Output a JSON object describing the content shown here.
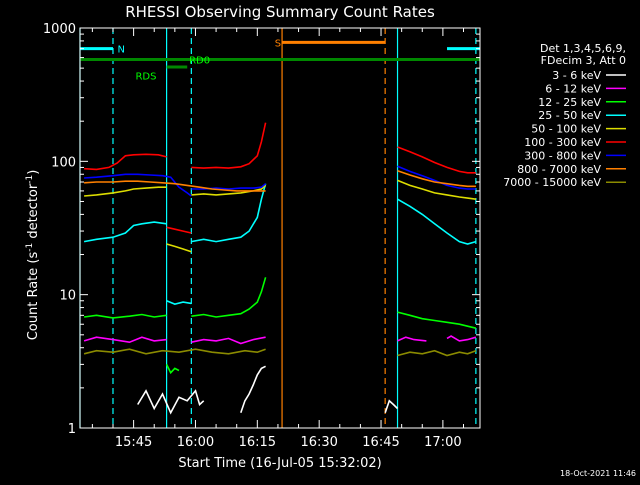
{
  "chart_data": {
    "type": "line",
    "title": "RHESSI Observing Summary Count Rates",
    "xlabel": "Start Time (16-Jul-05 15:32:02)",
    "ylabel_main": "Count Rate (s",
    "ylabel_sup1": "-1",
    "ylabel_mid": " detector",
    "ylabel_sup2": "-1",
    "ylabel_end": ")",
    "date_stamp": "18-Oct-2021 11:46",
    "y_scale": "log",
    "ylim": [
      1,
      1000
    ],
    "xlim": [
      "15:32",
      "17:09"
    ],
    "x_ticks": [
      "15:45",
      "16:00",
      "16:15",
      "16:30",
      "16:45",
      "17:00"
    ],
    "y_ticks": [
      "1",
      "10",
      "100",
      "1000"
    ],
    "legend_header": [
      "Det 1,3,4,5,6,9,",
      "FDecim 3, Att 0"
    ],
    "series": [
      {
        "name": "3 - 6 keV",
        "color": "#ffffff",
        "segments": [
          {
            "x": [
              "16:46",
              "16:47",
              "16:48",
              "16:49"
            ],
            "y": [
              1.3,
              1.6,
              1.5,
              1.4
            ]
          },
          {
            "x": [
              "15:46",
              "15:48",
              "15:50",
              "15:52",
              "15:54",
              "15:56",
              "15:58",
              "16:00",
              "16:01",
              "16:02"
            ],
            "y": [
              1.5,
              1.9,
              1.4,
              1.8,
              1.3,
              1.7,
              1.6,
              1.9,
              1.5,
              1.6
            ]
          },
          {
            "x": [
              "16:11",
              "16:12",
              "16:13",
              "16:14",
              "16:15",
              "16:16",
              "16:17"
            ],
            "y": [
              1.3,
              1.6,
              1.8,
              2.1,
              2.5,
              2.8,
              2.9
            ]
          }
        ]
      },
      {
        "name": "6 - 12 keV",
        "color": "#ff00ff",
        "segments": [
          {
            "x": [
              "15:33",
              "15:36",
              "15:40",
              "15:44",
              "15:47",
              "15:50",
              "15:53"
            ],
            "y": [
              4.5,
              4.8,
              4.6,
              4.4,
              4.8,
              4.5,
              4.6
            ]
          },
          {
            "x": [
              "15:59",
              "16:02",
              "16:05",
              "16:08",
              "16:11",
              "16:14",
              "16:17"
            ],
            "y": [
              4.4,
              4.6,
              4.5,
              4.7,
              4.3,
              4.6,
              4.8
            ]
          },
          {
            "x": [
              "16:49",
              "16:51",
              "16:53",
              "16:56"
            ],
            "y": [
              4.5,
              4.8,
              4.6,
              4.5
            ]
          },
          {
            "x": [
              "17:01",
              "17:02",
              "17:04",
              "17:06",
              "17:08"
            ],
            "y": [
              4.7,
              4.9,
              4.5,
              4.6,
              4.8
            ]
          }
        ]
      },
      {
        "name": "12 - 25 keV",
        "color": "#00ff00",
        "segments": [
          {
            "x": [
              "15:33",
              "15:36",
              "15:40",
              "15:44",
              "15:47",
              "15:50",
              "15:53"
            ],
            "y": [
              6.8,
              7.0,
              6.7,
              6.9,
              7.1,
              6.8,
              7.0
            ]
          },
          {
            "x": [
              "15:53",
              "15:54",
              "15:55",
              "15:56"
            ],
            "y": [
              3.0,
              2.6,
              2.8,
              2.7
            ]
          },
          {
            "x": [
              "15:59",
              "16:02",
              "16:05",
              "16:08",
              "16:11",
              "16:13",
              "16:15",
              "16:16",
              "16:17"
            ],
            "y": [
              6.9,
              7.1,
              6.8,
              7.0,
              7.2,
              7.8,
              8.8,
              10.5,
              13.5
            ]
          },
          {
            "x": [
              "16:49",
              "16:52",
              "16:55",
              "16:58",
              "17:01",
              "17:04",
              "17:06",
              "17:08"
            ],
            "y": [
              7.4,
              7.0,
              6.6,
              6.4,
              6.2,
              6.0,
              5.8,
              5.6
            ]
          }
        ]
      },
      {
        "name": "25 - 50 keV",
        "color": "#00ffff",
        "segments": [
          {
            "x": [
              "15:33",
              "15:36",
              "15:40",
              "15:43",
              "15:45",
              "15:47",
              "15:50",
              "15:53"
            ],
            "y": [
              25,
              26,
              27,
              29,
              33,
              34,
              35,
              34
            ]
          },
          {
            "x": [
              "15:53",
              "15:55",
              "15:57",
              "15:59"
            ],
            "y": [
              9,
              8.5,
              8.8,
              8.6
            ]
          },
          {
            "x": [
              "15:59",
              "16:02",
              "16:05",
              "16:08",
              "16:11",
              "16:13",
              "16:15",
              "16:16",
              "16:17"
            ],
            "y": [
              25,
              26,
              25,
              26,
              27,
              30,
              38,
              52,
              68
            ]
          },
          {
            "x": [
              "16:49",
              "16:52",
              "16:55",
              "16:58",
              "17:01",
              "17:04",
              "17:06",
              "17:08"
            ],
            "y": [
              52,
              46,
              40,
              34,
              29,
              25,
              24,
              25
            ]
          }
        ]
      },
      {
        "name": "50 - 100 keV",
        "color": "#dddd00",
        "segments": [
          {
            "x": [
              "15:33",
              "15:36",
              "15:40",
              "15:43",
              "15:45",
              "15:48",
              "15:51",
              "15:53"
            ],
            "y": [
              55,
              56,
              58,
              60,
              62,
              63,
              64,
              64
            ]
          },
          {
            "x": [
              "15:53",
              "15:55",
              "15:57",
              "15:59"
            ],
            "y": [
              24,
              23,
              22,
              21
            ]
          },
          {
            "x": [
              "15:59",
              "16:02",
              "16:05",
              "16:08",
              "16:11",
              "16:14",
              "16:16",
              "16:17"
            ],
            "y": [
              56,
              57,
              56,
              57,
              58,
              60,
              62,
              66
            ]
          },
          {
            "x": [
              "16:49",
              "16:52",
              "16:55",
              "16:58",
              "17:01",
              "17:04",
              "17:06",
              "17:08"
            ],
            "y": [
              72,
              66,
              62,
              58,
              56,
              54,
              53,
              52
            ]
          }
        ]
      },
      {
        "name": "100 - 300 keV",
        "color": "#ff0000",
        "segments": [
          {
            "x": [
              "15:33",
              "15:36",
              "15:39",
              "15:41",
              "15:43",
              "15:45",
              "15:48",
              "15:51",
              "15:53"
            ],
            "y": [
              88,
              87,
              90,
              97,
              110,
              112,
              113,
              112,
              108
            ]
          },
          {
            "x": [
              "15:53",
              "15:55",
              "15:57",
              "15:59"
            ],
            "y": [
              32,
              31,
              30,
              29
            ]
          },
          {
            "x": [
              "15:59",
              "16:02",
              "16:05",
              "16:08",
              "16:11",
              "16:13",
              "16:15",
              "16:16",
              "16:17"
            ],
            "y": [
              90,
              89,
              90,
              89,
              91,
              96,
              110,
              140,
              195
            ]
          },
          {
            "x": [
              "16:49",
              "16:52",
              "16:55",
              "16:58",
              "17:01",
              "17:04",
              "17:06",
              "17:08"
            ],
            "y": [
              128,
              118,
              108,
              98,
              90,
              84,
              82,
              82
            ]
          }
        ]
      },
      {
        "name": "300 - 800 keV",
        "color": "#0000ff",
        "segments": [
          {
            "x": [
              "15:33",
              "15:36",
              "15:40",
              "15:43",
              "15:46",
              "15:49",
              "15:52",
              "15:54",
              "15:56",
              "15:58",
              "15:59"
            ],
            "y": [
              75,
              76,
              78,
              80,
              80,
              79,
              78,
              76,
              64,
              58,
              55
            ]
          },
          {
            "x": [
              "15:59",
              "16:02",
              "16:05",
              "16:08",
              "16:11",
              "16:14",
              "16:16",
              "16:17"
            ],
            "y": [
              62,
              62,
              63,
              62,
              63,
              63,
              64,
              68
            ]
          },
          {
            "x": [
              "16:49",
              "16:52",
              "16:55",
              "16:58",
              "17:01",
              "17:04",
              "17:06",
              "17:08"
            ],
            "y": [
              92,
              84,
              78,
              72,
              66,
              63,
              62,
              62
            ]
          }
        ]
      },
      {
        "name": "800 - 7000 keV",
        "color": "#ff8000",
        "segments": [
          {
            "x": [
              "15:33",
              "15:36",
              "15:40",
              "15:43",
              "15:46",
              "15:49",
              "15:52",
              "15:55",
              "15:58",
              "16:01",
              "16:04",
              "16:07",
              "16:10",
              "16:13",
              "16:16",
              "16:17"
            ],
            "y": [
              69,
              70,
              70,
              71,
              71,
              70,
              69,
              68,
              66,
              64,
              62,
              61,
              60,
              60,
              60,
              60
            ]
          },
          {
            "x": [
              "16:49",
              "16:52",
              "16:55",
              "16:58",
              "17:01",
              "17:04",
              "17:06",
              "17:08"
            ],
            "y": [
              85,
              79,
              74,
              70,
              68,
              66,
              65,
              65
            ]
          }
        ]
      },
      {
        "name": "7000 - 15000 keV",
        "color": "#8b8b00",
        "segments": [
          {
            "x": [
              "15:33",
              "15:36",
              "15:40",
              "15:44",
              "15:48",
              "15:52",
              "15:56",
              "16:00",
              "16:04",
              "16:08",
              "16:12",
              "16:15",
              "16:17"
            ],
            "y": [
              3.6,
              3.8,
              3.7,
              3.9,
              3.6,
              3.8,
              3.7,
              3.9,
              3.7,
              3.6,
              3.8,
              3.7,
              3.9
            ]
          },
          {
            "x": [
              "16:49",
              "16:52",
              "16:55",
              "16:58",
              "17:01",
              "17:04",
              "17:06",
              "17:08"
            ],
            "y": [
              3.5,
              3.7,
              3.6,
              3.8,
              3.5,
              3.7,
              3.6,
              3.8
            ]
          }
        ]
      }
    ],
    "shading_flags": [
      {
        "label": "N",
        "color": "#00ffff",
        "ranges": [
          [
            "15:32",
            "15:40"
          ],
          [
            "17:01",
            "17:09"
          ]
        ],
        "level": 700
      },
      {
        "label": "S",
        "color": "#ff8000",
        "ranges": [
          [
            "16:21",
            "16:46"
          ]
        ],
        "level": 780
      },
      {
        "label": "RD0",
        "color": "#008800",
        "ranges": [
          [
            "15:32",
            "17:09"
          ]
        ],
        "level": 580
      },
      {
        "label": "RDS",
        "color": "#008800",
        "ranges": [
          [
            "15:53",
            "15:58"
          ]
        ],
        "level": 510
      }
    ],
    "flag_labels": [
      {
        "text": "N",
        "color": "#00ffff",
        "x": "15:42",
        "y": 700
      },
      {
        "text": "S",
        "color": "#ff8000",
        "x": "16:20",
        "y": 780
      },
      {
        "text": "RDS",
        "color": "#00ff00",
        "x": "15:48",
        "y": 440
      },
      {
        "text": "RD0",
        "color": "#00ff00",
        "x": "16:01",
        "y": 580
      }
    ],
    "vertical_lines": [
      {
        "x": "15:32",
        "color": "#00ffff",
        "style": "solid"
      },
      {
        "x": "15:40",
        "color": "#00ffff",
        "style": "dashed"
      },
      {
        "x": "15:53",
        "color": "#00ffff",
        "style": "solid"
      },
      {
        "x": "15:59",
        "color": "#00ffff",
        "style": "dashed"
      },
      {
        "x": "16:21",
        "color": "#ff8000",
        "style": "solid"
      },
      {
        "x": "16:46",
        "color": "#ff8000",
        "style": "dashed"
      },
      {
        "x": "16:49",
        "color": "#00ffff",
        "style": "solid"
      },
      {
        "x": "17:08",
        "color": "#00ffff",
        "style": "dashed"
      }
    ]
  }
}
